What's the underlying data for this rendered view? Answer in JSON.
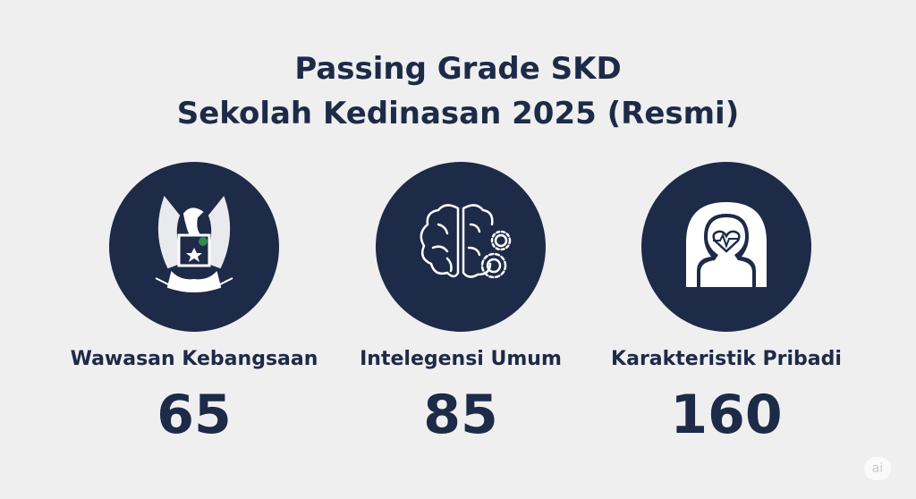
{
  "title": {
    "line1": "Passing Grade SKD",
    "line2": "Sekolah Kedinasan 2025 (Resmi)"
  },
  "items": [
    {
      "label": "Wawasan Kebangsaan",
      "value": "65",
      "icon": "garuda-emblem-icon"
    },
    {
      "label": "Intelegensi Umum",
      "value": "85",
      "icon": "brain-gears-icon"
    },
    {
      "label": "Karakteristik Pribadi",
      "value": "160",
      "icon": "person-heart-icon"
    }
  ],
  "watermark": "ai",
  "colors": {
    "background": "#efefef",
    "navy": "#1d2a48"
  }
}
